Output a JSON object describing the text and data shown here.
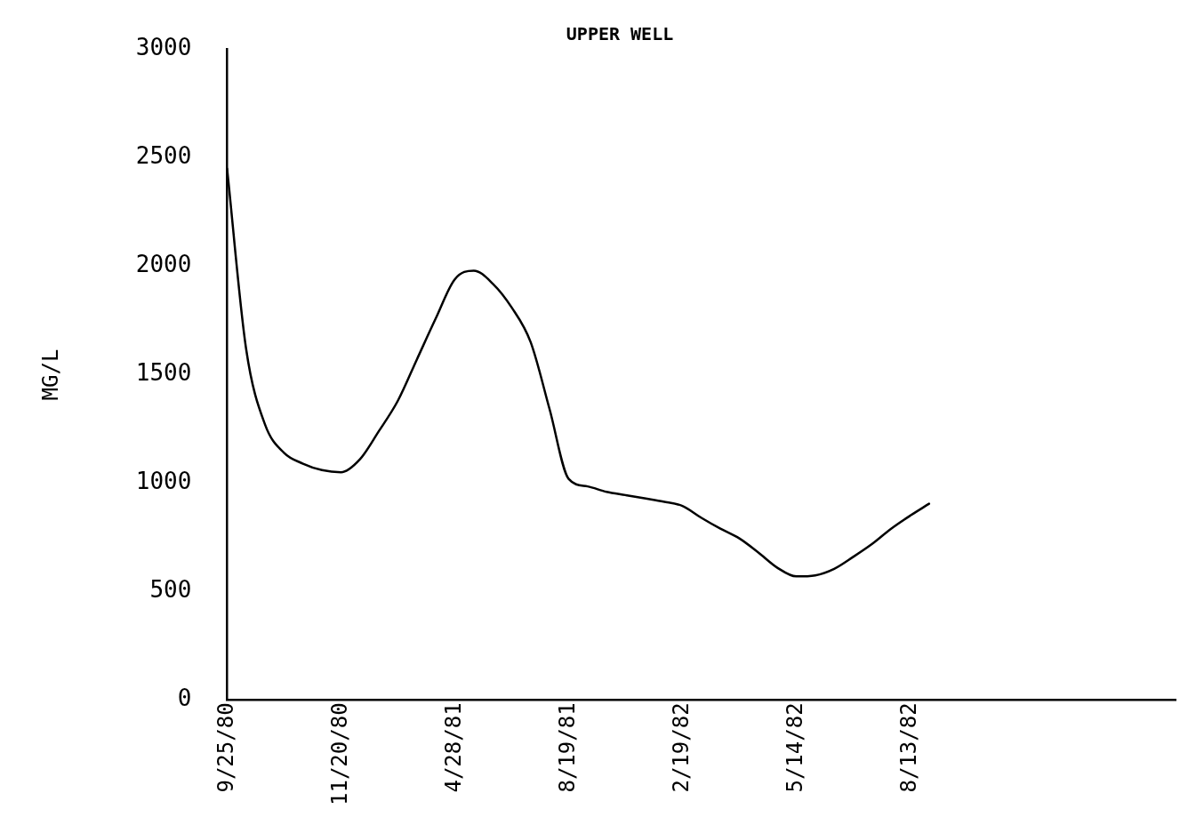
{
  "chart_data": {
    "type": "line",
    "title": "UPPER WELL",
    "ylabel": "MG/L",
    "categories": [
      "9/25/80",
      null,
      null,
      null,
      null,
      null,
      "11/20/80",
      null,
      null,
      null,
      null,
      null,
      "4/28/81",
      null,
      null,
      null,
      null,
      null,
      "8/19/81",
      null,
      null,
      null,
      null,
      null,
      "2/19/82",
      null,
      null,
      null,
      null,
      null,
      "5/14/82",
      null,
      null,
      null,
      null,
      null,
      "8/13/82",
      null,
      null,
      null,
      null,
      null,
      null,
      null,
      null,
      null,
      null,
      null,
      null,
      null,
      null
    ],
    "series": [
      {
        "color": "#000000",
        "values": [
          2450,
          1620,
          1270,
          1140,
          1090,
          1060,
          1050,
          1110,
          1240,
          1380,
          1570,
          1760,
          1940,
          1980,
          1920,
          1810,
          1650,
          1340,
          1020,
          985,
          960,
          945,
          930,
          915,
          895,
          840,
          790,
          745,
          680,
          610,
          570,
          575,
          605,
          660,
          720,
          790,
          850,
          905,
          null,
          null,
          null,
          null,
          null,
          null,
          null,
          null,
          null,
          null,
          null,
          null,
          null
        ]
      }
    ],
    "ylim": [
      0,
      3000
    ],
    "yticks": [
      0,
      500,
      1000,
      1500,
      2000,
      2500,
      3000
    ],
    "grid": false,
    "legend": false,
    "marker": "none",
    "line_style": "solid"
  }
}
